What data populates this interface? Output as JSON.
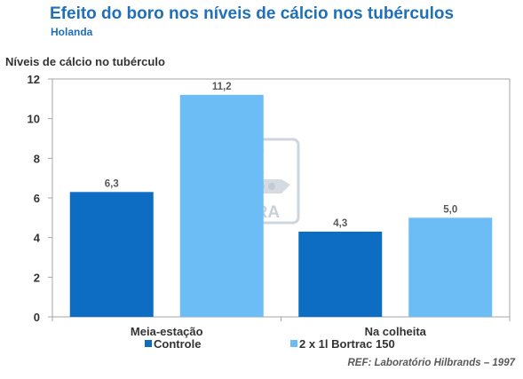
{
  "header": {
    "title": "Efeito do boro nos níveis de cálcio nos tubérculos",
    "subtitle": "Holanda"
  },
  "footer": {
    "reference": "REF: Laboratório Hilbrands – 1997"
  },
  "watermark": {
    "text": "YARA"
  },
  "colors": {
    "title": "#1f6fb9",
    "series_1": "#0c6dc2",
    "series_2": "#6cbdf6",
    "grid": "#a6a6a6"
  },
  "chart_data": {
    "type": "bar",
    "ylabel": "Níveis de cálcio no tubérculo",
    "xlabel": "",
    "ylim": [
      0,
      12
    ],
    "yticks": [
      0,
      2,
      4,
      6,
      8,
      10,
      12
    ],
    "categories": [
      "Meia-estação",
      "Na colheita"
    ],
    "series": [
      {
        "name": "Controle",
        "values": [
          6.3,
          4.3
        ],
        "labels": [
          "6,3",
          "4,3"
        ],
        "color": "#0c6dc2"
      },
      {
        "name": "2 x 1l Bortrac 150",
        "values": [
          11.2,
          5.0
        ],
        "labels": [
          "11,2",
          "5,0"
        ],
        "color": "#6cbdf6"
      }
    ],
    "grid": false,
    "legend": "bottom"
  }
}
